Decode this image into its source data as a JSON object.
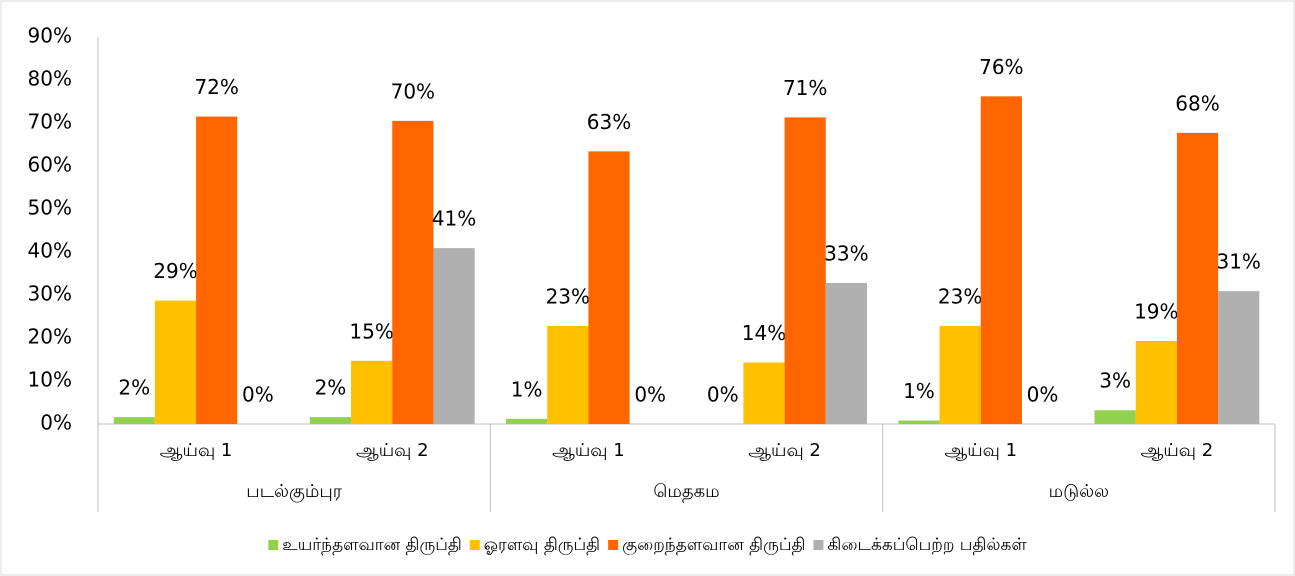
{
  "chart_data": {
    "type": "bar",
    "categories": [
      "ஆய்வு 1",
      "ஆய்வு 2",
      "ஆய்வு 1",
      "ஆய்வு 2",
      "ஆய்வு 1",
      "ஆய்வு 2"
    ],
    "groups": [
      "படல்கும்புர",
      "மெதகம",
      "மடுல்ல"
    ],
    "series": [
      {
        "name": "உயர்ந்தளவான திருப்தி",
        "color": "#92d050",
        "values": [
          1.6,
          1.6,
          1.2,
          0,
          0.8,
          3.2
        ],
        "value_labels": [
          "2%",
          "2%",
          "1%",
          "0%",
          "1%",
          "3%"
        ]
      },
      {
        "name": "ஓரளவு திருப்தி",
        "color": "#ffc000",
        "values": [
          28.7,
          14.7,
          22.8,
          14.3,
          22.8,
          19.3
        ],
        "value_labels": [
          "29%",
          "15%",
          "23%",
          "14%",
          "23%",
          "19%"
        ]
      },
      {
        "name": "குறைந்தளவான திருப்தி",
        "color": "#ff6600",
        "values": [
          71.5,
          70.5,
          63.4,
          71.3,
          76.2,
          67.7
        ],
        "value_labels": [
          "72%",
          "70%",
          "63%",
          "71%",
          "76%",
          "68%"
        ]
      },
      {
        "name": "கிடைக்கப்பெற்ற பதில்கள்",
        "color": "#b0b0b0",
        "values": [
          0,
          40.9,
          0,
          32.8,
          0,
          30.9
        ],
        "value_labels": [
          "0%",
          "41%",
          "0%",
          "33%",
          "0%",
          "31%"
        ]
      }
    ],
    "ylim": [
      0,
      90
    ],
    "yticks": [
      {
        "value": 0,
        "label": "0%"
      },
      {
        "value": 10,
        "label": "10%"
      },
      {
        "value": 20,
        "label": "20%"
      },
      {
        "value": 30,
        "label": "30%"
      },
      {
        "value": 40,
        "label": "40%"
      },
      {
        "value": 50,
        "label": "50%"
      },
      {
        "value": 60,
        "label": "60%"
      },
      {
        "value": 70,
        "label": "70%"
      },
      {
        "value": 80,
        "label": "80%"
      },
      {
        "value": 90,
        "label": "90%"
      }
    ],
    "grid": false,
    "legend": "bottom"
  }
}
